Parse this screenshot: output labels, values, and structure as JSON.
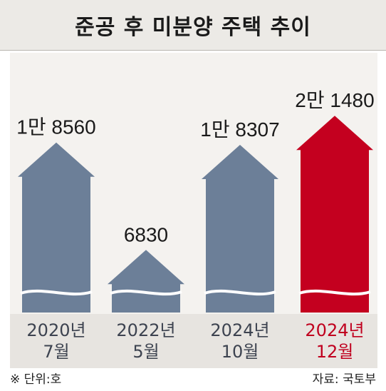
{
  "header": {
    "title": "준공 후 미분양 주택 추이"
  },
  "chart_data": {
    "type": "bar",
    "title": "준공 후 미분양 주택 추이",
    "unit_note": "※ 단위:호",
    "source": "자료: 국토부",
    "categories": [
      {
        "year": "2020년",
        "month": "7월"
      },
      {
        "year": "2022년",
        "month": "5월"
      },
      {
        "year": "2024년",
        "month": "10월"
      },
      {
        "year": "2024년",
        "month": "12월"
      }
    ],
    "values": [
      18560,
      6830,
      18307,
      21480
    ],
    "value_labels": [
      "1만 8560",
      "6830",
      "1만 8307",
      "2만 1480"
    ],
    "highlight_index": 3,
    "axis_break": true,
    "colors": {
      "bar": "#6c7f98",
      "highlight": "#c4001f"
    }
  }
}
